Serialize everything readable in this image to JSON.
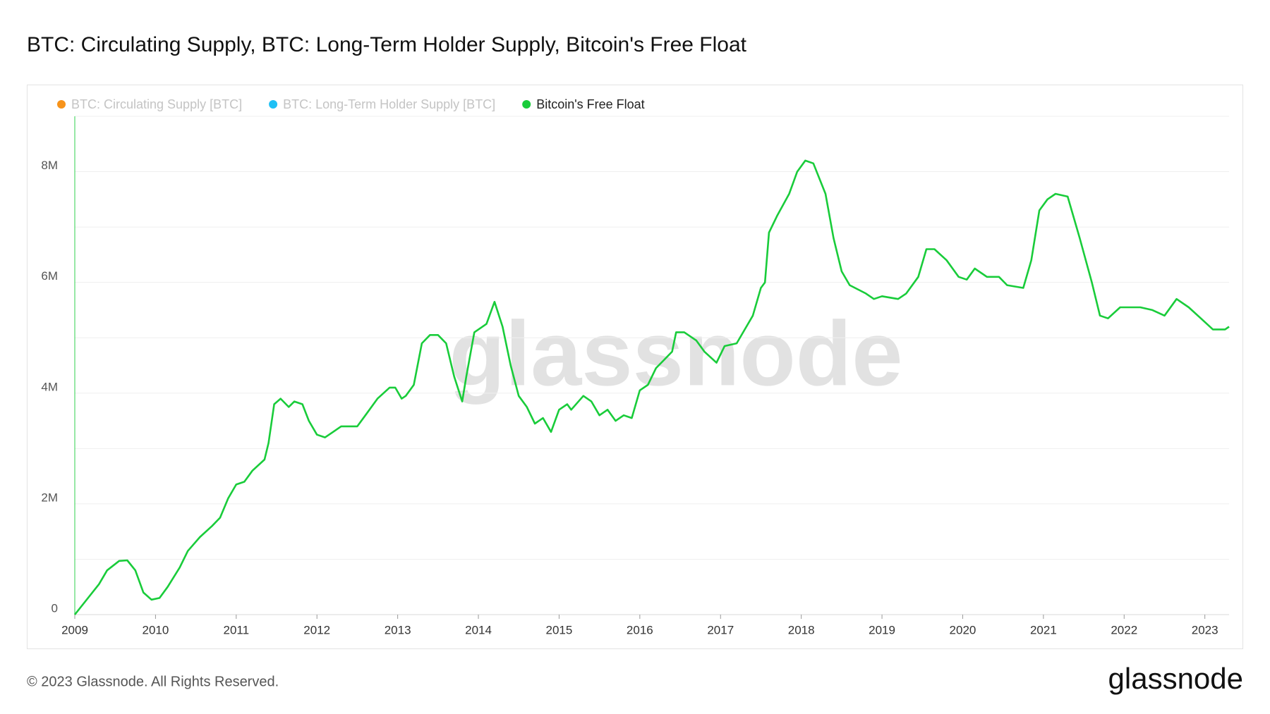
{
  "chart_data": {
    "type": "line",
    "title": "BTC: Circulating Supply, BTC: Long-Term Holder Supply, Bitcoin's Free Float",
    "x": [
      2009.0,
      2009.3,
      2009.4,
      2009.55,
      2009.65,
      2009.75,
      2009.85,
      2009.95,
      2010.05,
      2010.15,
      2010.3,
      2010.4,
      2010.55,
      2010.7,
      2010.8,
      2010.9,
      2011.0,
      2011.1,
      2011.2,
      2011.35,
      2011.4,
      2011.47,
      2011.55,
      2011.65,
      2011.72,
      2011.82,
      2011.9,
      2012.0,
      2012.1,
      2012.2,
      2012.3,
      2012.4,
      2012.5,
      2012.6,
      2012.75,
      2012.9,
      2012.97,
      2013.05,
      2013.1,
      2013.2,
      2013.3,
      2013.4,
      2013.5,
      2013.6,
      2013.7,
      2013.8,
      2013.85,
      2013.95,
      2014.1,
      2014.2,
      2014.3,
      2014.4,
      2014.5,
      2014.6,
      2014.7,
      2014.8,
      2014.9,
      2015.0,
      2015.1,
      2015.15,
      2015.3,
      2015.4,
      2015.5,
      2015.6,
      2015.7,
      2015.8,
      2015.9,
      2016.0,
      2016.1,
      2016.2,
      2016.3,
      2016.4,
      2016.45,
      2016.55,
      2016.7,
      2016.8,
      2016.95,
      2017.05,
      2017.2,
      2017.3,
      2017.4,
      2017.5,
      2017.55,
      2017.6,
      2017.7,
      2017.85,
      2017.95,
      2018.05,
      2018.15,
      2018.3,
      2018.4,
      2018.5,
      2018.6,
      2018.8,
      2018.9,
      2019.0,
      2019.2,
      2019.3,
      2019.45,
      2019.55,
      2019.65,
      2019.8,
      2019.95,
      2020.05,
      2020.15,
      2020.3,
      2020.45,
      2020.55,
      2020.75,
      2020.85,
      2020.95,
      2021.05,
      2021.15,
      2021.3,
      2021.45,
      2021.6,
      2021.7,
      2021.8,
      2021.95,
      2022.2,
      2022.35,
      2022.5,
      2022.65,
      2022.8,
      2022.95,
      2023.1,
      2023.25,
      2023.3
    ],
    "series": [
      {
        "name": "BTC: Circulating Supply [BTC]",
        "color": "#f7931a",
        "visible": false
      },
      {
        "name": "BTC: Long-Term Holder Supply [BTC]",
        "color": "#1ec0f5",
        "visible": false
      },
      {
        "name": "Bitcoin's Free Float",
        "color": "#19cc3a",
        "visible": true,
        "values": [
          0,
          550000,
          800000,
          970000,
          980000,
          800000,
          400000,
          270000,
          300000,
          500000,
          850000,
          1150000,
          1400000,
          1600000,
          1750000,
          2100000,
          2350000,
          2400000,
          2600000,
          2800000,
          3100000,
          3800000,
          3900000,
          3750000,
          3850000,
          3800000,
          3500000,
          3250000,
          3200000,
          3300000,
          3400000,
          3400000,
          3400000,
          3600000,
          3900000,
          4100000,
          4100000,
          3900000,
          3950000,
          4150000,
          4900000,
          5050000,
          5050000,
          4900000,
          4300000,
          3850000,
          4300000,
          5100000,
          5250000,
          5650000,
          5200000,
          4500000,
          3950000,
          3750000,
          3450000,
          3550000,
          3300000,
          3700000,
          3800000,
          3700000,
          3950000,
          3850000,
          3600000,
          3700000,
          3500000,
          3600000,
          3550000,
          4050000,
          4150000,
          4450000,
          4600000,
          4750000,
          5100000,
          5100000,
          4950000,
          4750000,
          4550000,
          4850000,
          4900000,
          5150000,
          5400000,
          5900000,
          6000000,
          6900000,
          7200000,
          7600000,
          8000000,
          8200000,
          8150000,
          7600000,
          6800000,
          6200000,
          5950000,
          5800000,
          5700000,
          5750000,
          5700000,
          5800000,
          6100000,
          6600000,
          6600000,
          6400000,
          6100000,
          6050000,
          6250000,
          6100000,
          6100000,
          5950000,
          5900000,
          6400000,
          7300000,
          7500000,
          7600000,
          7550000,
          6800000,
          6000000,
          5400000,
          5350000,
          5550000,
          5550000,
          5500000,
          5400000,
          5700000,
          5550000,
          5350000,
          5150000,
          5150000,
          5200000
        ]
      }
    ],
    "xlim": [
      2009,
      2023.3
    ],
    "xticks": [
      2009,
      2010,
      2011,
      2012,
      2013,
      2014,
      2015,
      2016,
      2017,
      2018,
      2019,
      2020,
      2021,
      2022,
      2023
    ],
    "ylim": [
      0,
      9000000
    ],
    "yticks": [
      0,
      {
        "value": 2000000,
        "label": "2M"
      },
      {
        "value": 4000000,
        "label": "4M"
      },
      {
        "value": 6000000,
        "label": "6M"
      },
      {
        "value": 8000000,
        "label": "8M"
      }
    ],
    "ygrid": [
      1000000,
      2000000,
      3000000,
      4000000,
      5000000,
      6000000,
      7000000,
      8000000,
      9000000
    ],
    "grid": true,
    "legend": "top-left"
  },
  "watermark": "glassnode",
  "footer": "© 2023 Glassnode. All Rights Reserved.",
  "logo": "glassnode"
}
